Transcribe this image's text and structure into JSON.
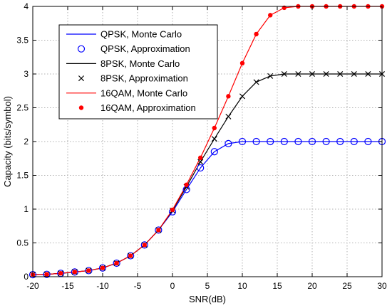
{
  "chart_data": {
    "type": "line",
    "xlabel": "SNR(dB)",
    "ylabel": "Capacity (bits/symbol)",
    "xlim": [
      -20,
      30
    ],
    "ylim": [
      0,
      4
    ],
    "xticks": [
      -20,
      -15,
      -10,
      -5,
      0,
      5,
      10,
      15,
      20,
      25,
      30
    ],
    "yticks": [
      0,
      0.5,
      1,
      1.5,
      2,
      2.5,
      3,
      3.5,
      4
    ],
    "xtick_labels": [
      "-20",
      "-15",
      "-10",
      "-5",
      "0",
      "5",
      "10",
      "15",
      "20",
      "25",
      "30"
    ],
    "ytick_labels": [
      "0",
      "0.5",
      "1",
      "1.5",
      "2",
      "2.5",
      "3",
      "3.5",
      "4"
    ],
    "grid": true,
    "legend_position": "top-left",
    "series": [
      {
        "name": "QPSK, Monte Carlo",
        "kind": "line",
        "color": "#0000ff",
        "x": [
          -20,
          -18,
          -16,
          -14,
          -12,
          -10,
          -8,
          -6,
          -4,
          -2,
          0,
          2,
          4,
          6,
          8,
          10,
          12,
          14,
          16,
          18,
          20,
          22,
          24,
          26,
          28,
          30
        ],
        "y": [
          0.03,
          0.035,
          0.05,
          0.07,
          0.09,
          0.13,
          0.2,
          0.31,
          0.47,
          0.69,
          0.96,
          1.29,
          1.61,
          1.85,
          1.97,
          2.0,
          2.0,
          2.0,
          2.0,
          2.0,
          2.0,
          2.0,
          2.0,
          2.0,
          2.0,
          2.0
        ]
      },
      {
        "name": "QPSK, Approximation",
        "kind": "marker",
        "marker": "circle",
        "color": "#0000ff",
        "x": [
          -20,
          -18,
          -16,
          -14,
          -12,
          -10,
          -8,
          -6,
          -4,
          -2,
          0,
          2,
          4,
          6,
          8,
          10,
          12,
          14,
          16,
          18,
          20,
          22,
          24,
          26,
          28,
          30
        ],
        "y": [
          0.03,
          0.035,
          0.05,
          0.07,
          0.09,
          0.13,
          0.2,
          0.31,
          0.47,
          0.69,
          0.96,
          1.29,
          1.61,
          1.85,
          1.97,
          2.0,
          2.0,
          2.0,
          2.0,
          2.0,
          2.0,
          2.0,
          2.0,
          2.0,
          2.0,
          2.0
        ]
      },
      {
        "name": "8PSK, Monte Carlo",
        "kind": "line",
        "color": "#000000",
        "x": [
          -20,
          -18,
          -16,
          -14,
          -12,
          -10,
          -8,
          -6,
          -4,
          -2,
          0,
          2,
          4,
          6,
          8,
          10,
          12,
          14,
          16,
          18,
          20,
          22,
          24,
          26,
          28,
          30
        ],
        "y": [
          0.03,
          0.035,
          0.05,
          0.07,
          0.09,
          0.13,
          0.2,
          0.31,
          0.47,
          0.69,
          0.98,
          1.33,
          1.7,
          2.04,
          2.37,
          2.67,
          2.88,
          2.97,
          3.0,
          3.0,
          3.0,
          3.0,
          3.0,
          3.0,
          3.0,
          3.0
        ]
      },
      {
        "name": "8PSK, Approximation",
        "kind": "marker",
        "marker": "x",
        "color": "#000000",
        "x": [
          -20,
          -18,
          -16,
          -14,
          -12,
          -10,
          -8,
          -6,
          -4,
          -2,
          0,
          2,
          4,
          6,
          8,
          10,
          12,
          14,
          16,
          18,
          20,
          22,
          24,
          26,
          28,
          30
        ],
        "y": [
          0.03,
          0.035,
          0.05,
          0.07,
          0.09,
          0.13,
          0.2,
          0.31,
          0.47,
          0.69,
          0.98,
          1.33,
          1.7,
          2.04,
          2.37,
          2.67,
          2.88,
          2.97,
          3.0,
          3.0,
          3.0,
          3.0,
          3.0,
          3.0,
          3.0,
          3.0
        ]
      },
      {
        "name": "16QAM, Monte Carlo",
        "kind": "line",
        "color": "#ff0000",
        "x": [
          -20,
          -18,
          -16,
          -14,
          -12,
          -10,
          -8,
          -6,
          -4,
          -2,
          0,
          2,
          4,
          6,
          8,
          10,
          12,
          14,
          16,
          18,
          20,
          22,
          24,
          26,
          28,
          30
        ],
        "y": [
          0.03,
          0.035,
          0.05,
          0.07,
          0.09,
          0.13,
          0.2,
          0.31,
          0.47,
          0.69,
          0.99,
          1.36,
          1.76,
          2.2,
          2.67,
          3.16,
          3.59,
          3.87,
          3.98,
          4.0,
          4.0,
          4.0,
          4.0,
          4.0,
          4.0,
          4.0
        ]
      },
      {
        "name": "16QAM, Approximation",
        "kind": "marker",
        "marker": "dot",
        "color": "#ff0000",
        "x": [
          -20,
          -18,
          -16,
          -14,
          -12,
          -10,
          -8,
          -6,
          -4,
          -2,
          0,
          2,
          4,
          6,
          8,
          10,
          12,
          14,
          16,
          18,
          20,
          22,
          24,
          26,
          28,
          30
        ],
        "y": [
          0.03,
          0.035,
          0.05,
          0.07,
          0.09,
          0.13,
          0.2,
          0.31,
          0.47,
          0.69,
          0.99,
          1.36,
          1.76,
          2.2,
          2.67,
          3.16,
          3.59,
          3.87,
          3.98,
          4.0,
          4.0,
          4.0,
          4.0,
          4.0,
          4.0,
          4.0
        ]
      }
    ]
  }
}
